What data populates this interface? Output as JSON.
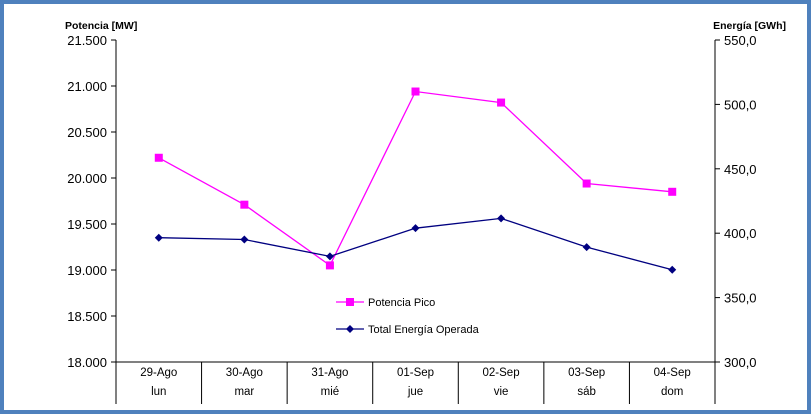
{
  "chart_data": {
    "type": "line",
    "y_left_label": "Potencia [MW]",
    "y_right_label": "Energía [GWh]",
    "y_left_ticks": [
      "18.000",
      "18.500",
      "19.000",
      "19.500",
      "20.000",
      "20.500",
      "21.000",
      "21.500"
    ],
    "y_right_ticks": [
      "300,0",
      "350,0",
      "400,0",
      "450,0",
      "500,0",
      "550,0"
    ],
    "y_left_range": [
      18000,
      21500
    ],
    "y_right_range": [
      300,
      550
    ],
    "categories": [
      {
        "date": "29-Ago",
        "day": "lun"
      },
      {
        "date": "30-Ago",
        "day": "mar"
      },
      {
        "date": "31-Ago",
        "day": "mié"
      },
      {
        "date": "01-Sep",
        "day": "jue"
      },
      {
        "date": "02-Sep",
        "day": "vie"
      },
      {
        "date": "03-Sep",
        "day": "sáb"
      },
      {
        "date": "04-Sep",
        "day": "dom"
      }
    ],
    "series": [
      {
        "name": "Potencia Pico",
        "axis": "left",
        "color": "#ff00ff",
        "marker": "square",
        "values": [
          20220,
          19710,
          19050,
          20940,
          20820,
          19940,
          19850
        ]
      },
      {
        "name": "Total Energía Operada",
        "axis": "right",
        "color": "#000080",
        "marker": "diamond",
        "values": [
          396.5,
          395.1,
          382.0,
          403.9,
          411.5,
          389.2,
          371.6
        ]
      }
    ],
    "legend_position": "bottom-center",
    "grid": false
  }
}
